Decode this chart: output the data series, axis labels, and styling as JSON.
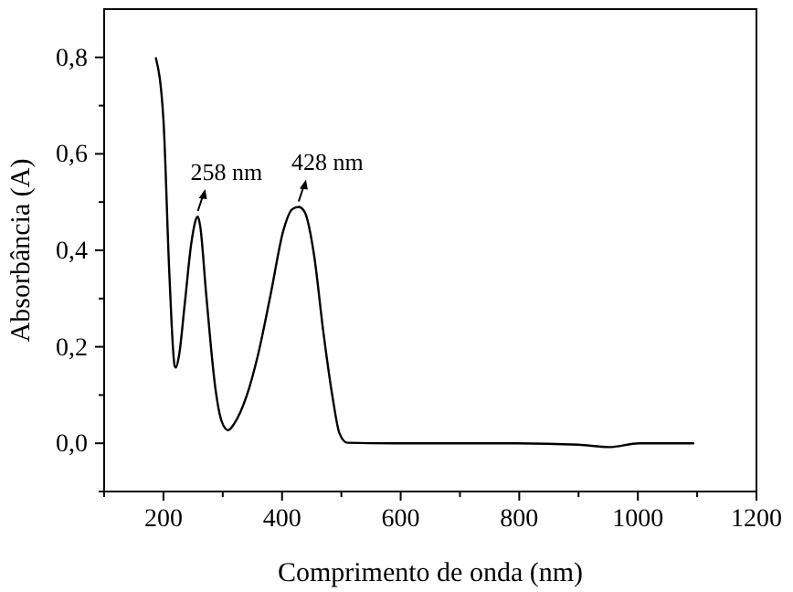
{
  "chart_data": {
    "type": "line",
    "xlabel": "Comprimento de onda (nm)",
    "ylabel": "Absorbância (A)",
    "series": [
      {
        "color": "#000000",
        "x": [
          187,
          200,
          210,
          219,
          221,
          226,
          236,
          247,
          255,
          258,
          262,
          272,
          288,
          298,
          309,
          319,
          340,
          360,
          381,
          402,
          417,
          428,
          438,
          454,
          469,
          485,
          497,
          510,
          588,
          700,
          795,
          900,
          951,
          1002,
          1095
        ],
        "values": [
          0.8,
          0.67,
          0.35,
          0.16,
          0.157,
          0.18,
          0.29,
          0.415,
          0.465,
          0.47,
          0.45,
          0.31,
          0.11,
          0.046,
          0.027,
          0.04,
          0.097,
          0.186,
          0.31,
          0.44,
          0.485,
          0.49,
          0.48,
          0.39,
          0.237,
          0.097,
          0.02,
          0.001,
          0,
          0,
          0,
          -0.003,
          -0.008,
          0,
          0
        ]
      }
    ],
    "xlim": [
      100,
      1200
    ],
    "xticks": [
      {
        "value": 100,
        "label": null
      },
      200,
      {
        "value": 300,
        "label": null
      },
      400,
      {
        "value": 500,
        "label": null
      },
      600,
      {
        "value": 700,
        "label": null
      },
      800,
      {
        "value": 900,
        "label": null
      },
      1000,
      {
        "value": 1100,
        "label": null
      },
      1200
    ],
    "ylim": [
      -0.1,
      0.9
    ],
    "yticks": [
      {
        "value": -0.1,
        "label": null
      },
      {
        "value": 0,
        "label": "0,0"
      },
      {
        "value": 0.1,
        "label": null
      },
      {
        "value": 0.2,
        "label": "0,2"
      },
      {
        "value": 0.3,
        "label": null
      },
      {
        "value": 0.4,
        "label": "0,4"
      },
      {
        "value": 0.5,
        "label": null
      },
      {
        "value": 0.6,
        "label": "0,6"
      },
      {
        "value": 0.7,
        "label": null
      },
      {
        "value": 0.8,
        "label": "0,8"
      }
    ],
    "annotations": [
      {
        "text": "258 nm",
        "x": 258,
        "y": 0.47
      },
      {
        "text": "428 nm",
        "x": 428,
        "y": 0.49
      }
    ],
    "grid": false,
    "line_style": "solid",
    "marker": "none"
  }
}
